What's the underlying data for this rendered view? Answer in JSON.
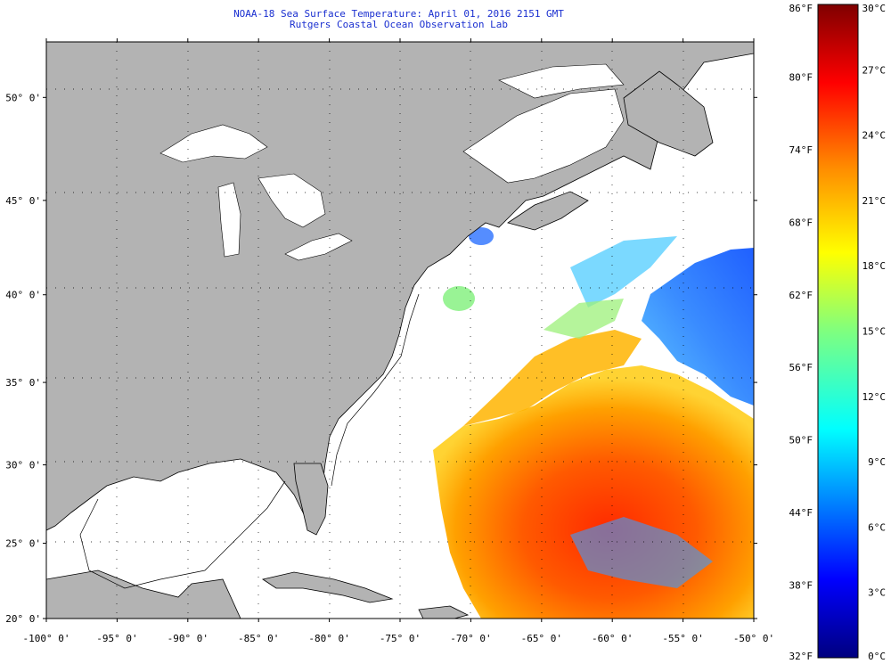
{
  "header": {
    "title": "NOAA-18 Sea Surface Temperature:  April 01, 2016 2151 GMT",
    "subtitle": "Rutgers Coastal Ocean Observation Lab"
  },
  "map": {
    "lon_range": [
      -100,
      -50
    ],
    "lat_range": [
      20,
      52.5
    ],
    "lon_labels": [
      {
        "lon": -100,
        "text": "-100° 0'"
      },
      {
        "lon": -95,
        "text": "-95° 0'"
      },
      {
        "lon": -90,
        "text": "-90° 0'"
      },
      {
        "lon": -85,
        "text": "-85° 0'"
      },
      {
        "lon": -80,
        "text": "-80° 0'"
      },
      {
        "lon": -75,
        "text": "-75° 0'"
      },
      {
        "lon": -70,
        "text": "-70° 0'"
      },
      {
        "lon": -65,
        "text": "-65° 0'"
      },
      {
        "lon": -60,
        "text": "-60° 0'"
      },
      {
        "lon": -55,
        "text": "-55° 0'"
      },
      {
        "lon": -50,
        "text": "-50° 0'"
      }
    ],
    "lat_labels": [
      {
        "lat": 50,
        "text": "50° 0'"
      },
      {
        "lat": 45,
        "text": "45° 0'"
      },
      {
        "lat": 40,
        "text": "40° 0'"
      },
      {
        "lat": 35,
        "text": "35° 0'"
      },
      {
        "lat": 30,
        "text": "30° 0'"
      },
      {
        "lat": 25,
        "text": "25° 0'"
      },
      {
        "lat": 20,
        "text": "20° 0'"
      }
    ],
    "land_color": "#b3b3b3",
    "water_color": "#ffffff"
  },
  "colorbar": {
    "fahrenheit": [
      "86°F",
      "80°F",
      "74°F",
      "68°F",
      "62°F",
      "56°F",
      "50°F",
      "44°F",
      "38°F",
      "32°F"
    ],
    "celsius": [
      "30°C",
      "27°C",
      "24°C",
      "21°C",
      "18°C",
      "15°C",
      "12°C",
      "9°C",
      "6°C",
      "3°C",
      "0°C"
    ],
    "gradient": [
      "#00007f",
      "#0000ff",
      "#007fff",
      "#00ffff",
      "#7fff7f",
      "#ffff00",
      "#ff7f00",
      "#ff0000",
      "#7f0000"
    ]
  }
}
